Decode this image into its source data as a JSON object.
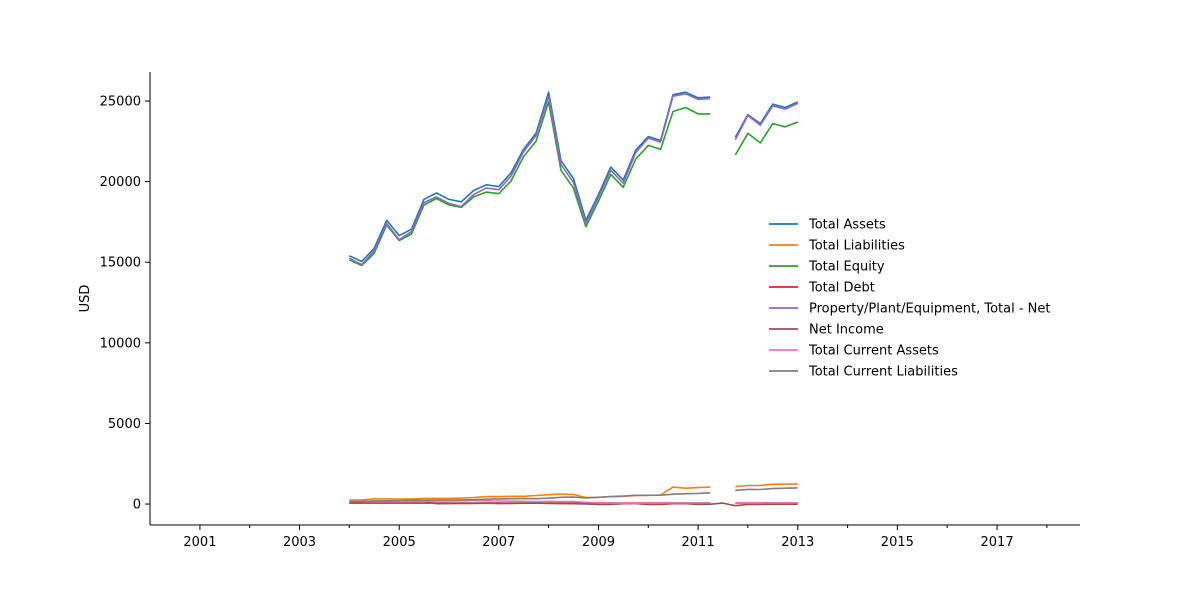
{
  "chart_data": {
    "type": "line",
    "title": "",
    "xlabel": "",
    "ylabel": "USD",
    "xlim": [
      "2000-01-01",
      "2018-09-01"
    ],
    "ylim": [
      -1300,
      26800
    ],
    "x_ticks": [
      {
        "date": "2001-01-01",
        "label": "2001"
      },
      {
        "date": "2003-01-01",
        "label": "2003"
      },
      {
        "date": "2005-01-01",
        "label": "2005"
      },
      {
        "date": "2007-01-01",
        "label": "2007"
      },
      {
        "date": "2009-01-01",
        "label": "2009"
      },
      {
        "date": "2011-01-01",
        "label": "2011"
      },
      {
        "date": "2013-01-01",
        "label": "2013"
      },
      {
        "date": "2015-01-01",
        "label": "2015"
      },
      {
        "date": "2017-01-01",
        "label": "2017"
      }
    ],
    "x_minor_ticks": [
      "2002-01-01",
      "2004-01-01",
      "2006-01-01",
      "2008-01-01",
      "2010-01-01",
      "2012-01-01",
      "2014-01-01",
      "2016-01-01",
      "2018-01-01"
    ],
    "y_ticks": [
      0,
      5000,
      10000,
      15000,
      20000,
      25000
    ],
    "legend_position": "center-right",
    "grid": false,
    "x": [
      "2004-01-01",
      "2004-04-01",
      "2004-07-01",
      "2004-10-01",
      "2005-01-01",
      "2005-04-01",
      "2005-07-01",
      "2005-10-01",
      "2006-01-01",
      "2006-04-01",
      "2006-07-01",
      "2006-10-01",
      "2007-01-01",
      "2007-04-01",
      "2007-07-01",
      "2007-10-01",
      "2008-01-01",
      "2008-04-01",
      "2008-07-01",
      "2008-10-01",
      "2009-01-01",
      "2009-04-01",
      "2009-07-01",
      "2009-10-01",
      "2010-01-01",
      "2010-04-01",
      "2010-07-01",
      "2010-10-01",
      "2011-01-01",
      "2011-04-01",
      "2011-07-01",
      "2011-10-01",
      "2012-01-01",
      "2012-04-01",
      "2012-07-01",
      "2012-10-01",
      "2013-01-01"
    ],
    "series": [
      {
        "name": "Total Assets",
        "color": "#1f77b4",
        "values": [
          15400,
          15050,
          15850,
          17600,
          16650,
          17050,
          18900,
          19300,
          18900,
          18750,
          19450,
          19800,
          19700,
          20550,
          22000,
          23000,
          25550,
          21300,
          20200,
          17600,
          19200,
          20900,
          20100,
          21950,
          22800,
          22550,
          25400,
          25550,
          25200,
          25250,
          null,
          22750,
          24150,
          23600,
          24800,
          24600,
          24950
        ]
      },
      {
        "name": "Total Liabilities",
        "color": "#ff7f0e",
        "values": [
          250,
          260,
          320,
          320,
          310,
          310,
          350,
          350,
          350,
          370,
          400,
          460,
          460,
          480,
          480,
          530,
          580,
          620,
          600,
          400,
          420,
          460,
          470,
          530,
          540,
          560,
          1050,
          980,
          1020,
          1050,
          null,
          1080,
          1150,
          1150,
          1230,
          1230,
          1250
        ]
      },
      {
        "name": "Total Equity",
        "color": "#2ca02c",
        "values": [
          15150,
          14800,
          15550,
          17300,
          16350,
          16750,
          18550,
          18950,
          18550,
          18400,
          19050,
          19350,
          19250,
          20050,
          21550,
          22500,
          24950,
          20700,
          19600,
          17200,
          18800,
          20450,
          19650,
          21400,
          22250,
          22000,
          24350,
          24600,
          24200,
          24200,
          null,
          21650,
          23000,
          22400,
          23600,
          23400,
          23700
        ]
      },
      {
        "name": "Total Debt",
        "color": "#d62728",
        "values": [
          60,
          60,
          60,
          60,
          60,
          60,
          60,
          60,
          60,
          60,
          60,
          60,
          60,
          60,
          60,
          60,
          60,
          60,
          60,
          60,
          60,
          60,
          60,
          60,
          60,
          60,
          60,
          60,
          60,
          60,
          null,
          60,
          60,
          60,
          60,
          60,
          60
        ]
      },
      {
        "name": "Property/Plant/Equipment, Total - Net",
        "color": "#9467bd",
        "values": [
          15250,
          14850,
          15700,
          17400,
          16400,
          16900,
          18700,
          19050,
          18650,
          18450,
          19200,
          19600,
          19500,
          20350,
          21850,
          22850,
          25300,
          21050,
          19950,
          17400,
          19050,
          20700,
          19900,
          21800,
          22700,
          22450,
          25300,
          25450,
          25100,
          25150,
          null,
          22600,
          24100,
          23500,
          24700,
          24500,
          24850
        ]
      },
      {
        "name": "Net Income",
        "color": "#8c564b",
        "values": [
          150,
          160,
          180,
          170,
          180,
          170,
          170,
          20,
          30,
          40,
          40,
          50,
          30,
          40,
          50,
          60,
          40,
          30,
          20,
          10,
          -20,
          -30,
          20,
          30,
          -30,
          -30,
          20,
          30,
          -20,
          -10,
          60,
          -100,
          -20,
          -20,
          -10,
          -10,
          -10
        ]
      },
      {
        "name": "Total Current Assets",
        "color": "#e377c2",
        "values": [
          150,
          150,
          160,
          160,
          160,
          170,
          170,
          180,
          190,
          200,
          210,
          200,
          190,
          180,
          170,
          160,
          170,
          160,
          150,
          110,
          80,
          70,
          60,
          60,
          70,
          70,
          80,
          80,
          80,
          80,
          null,
          70,
          70,
          70,
          80,
          80,
          80
        ]
      },
      {
        "name": "Total Current Liabilities",
        "color": "#7f7f7f",
        "values": [
          140,
          150,
          180,
          200,
          220,
          230,
          240,
          250,
          250,
          260,
          270,
          300,
          320,
          330,
          340,
          330,
          360,
          420,
          430,
          380,
          420,
          470,
          490,
          540,
          540,
          550,
          610,
          640,
          660,
          700,
          null,
          850,
          910,
          900,
          960,
          980,
          1000
        ]
      }
    ]
  }
}
